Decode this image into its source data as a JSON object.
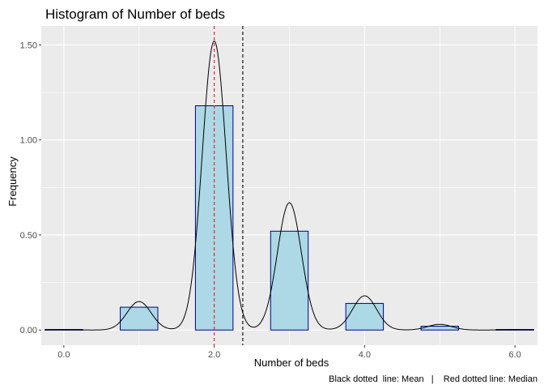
{
  "chart_data": {
    "type": "bar",
    "title": "Histogram of Number of beds",
    "xlabel": "Number of beds",
    "ylabel": "Frequency",
    "caption": "Black dotted  line: Mean   |    Red dotted line: Median",
    "xlim": [
      -0.3,
      6.3
    ],
    "ylim": [
      -0.08,
      1.6
    ],
    "x_ticks": [
      0,
      2,
      4,
      6
    ],
    "x_tick_labels": [
      "0.0",
      "2.0",
      "4.0",
      "6.0"
    ],
    "y_ticks": [
      0,
      0.5,
      1.0,
      1.5
    ],
    "y_tick_labels": [
      "0.00",
      "0.50",
      "1.00",
      "1.50"
    ],
    "bin_width": 0.5,
    "bins": [
      {
        "x": 0,
        "density": 0.003
      },
      {
        "x": 1,
        "density": 0.12
      },
      {
        "x": 2,
        "density": 1.18
      },
      {
        "x": 3,
        "density": 0.52
      },
      {
        "x": 4,
        "density": 0.14
      },
      {
        "x": 5,
        "density": 0.02
      },
      {
        "x": 6,
        "density": 0.003
      }
    ],
    "density_peaks": [
      {
        "x": 0,
        "height": 0.002
      },
      {
        "x": 1,
        "height": 0.15
      },
      {
        "x": 2,
        "height": 1.52
      },
      {
        "x": 3,
        "height": 0.67
      },
      {
        "x": 4,
        "height": 0.18
      },
      {
        "x": 5,
        "height": 0.03
      },
      {
        "x": 6,
        "height": 0.002
      }
    ],
    "mean": 2.38,
    "median": 2.0,
    "colors": {
      "panel": "#ebebeb",
      "grid_major": "#ffffff",
      "bar_fill": "#add8e6",
      "bar_stroke": "#00008b",
      "density_line": "#000000",
      "mean_line": "#000000",
      "median_line": "#e41a1c"
    },
    "grid": true
  }
}
